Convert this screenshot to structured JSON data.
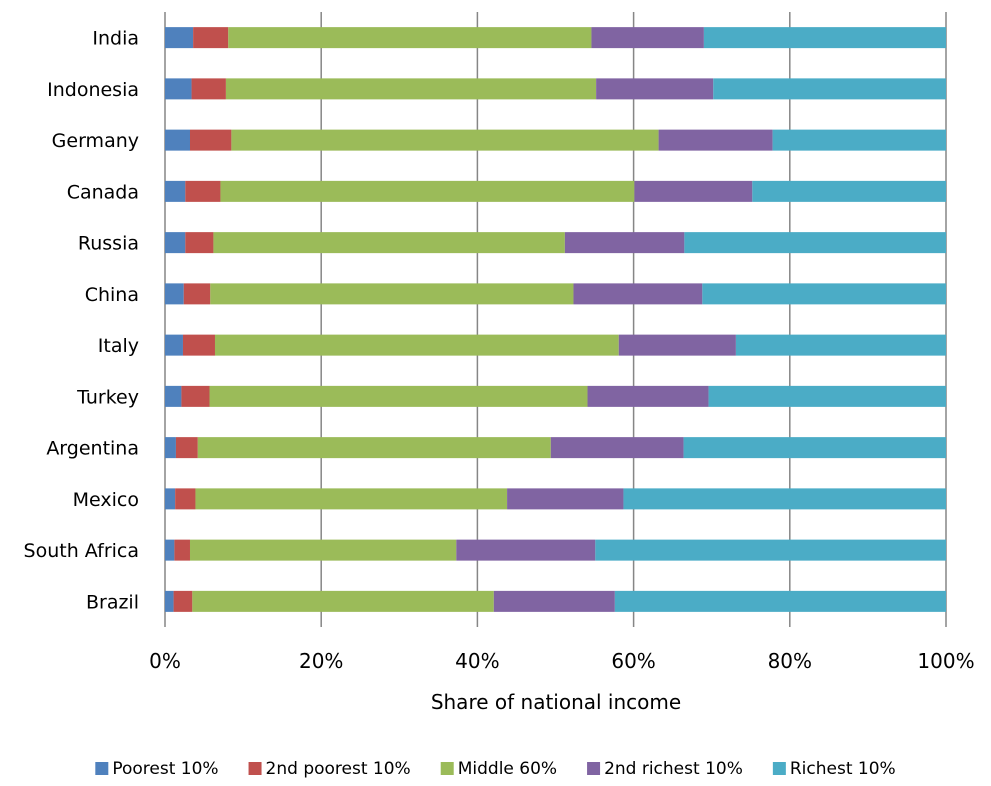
{
  "chart_data": {
    "type": "bar",
    "orientation": "horizontal",
    "stacked": "percent",
    "title": "",
    "xlabel": "Share of national income",
    "ylabel": "",
    "xlim": [
      0,
      100
    ],
    "x_ticks": [
      "0%",
      "20%",
      "40%",
      "60%",
      "80%",
      "100%"
    ],
    "grid": "vertical major gridlines",
    "legend_position": "bottom",
    "categories": [
      "India",
      "Indonesia",
      "Germany",
      "Canada",
      "Russia",
      "China",
      "Italy",
      "Turkey",
      "Argentina",
      "Mexico",
      "South Africa",
      "Brazil"
    ],
    "series": [
      {
        "name": "Poorest 10%",
        "color": "#4f81bd",
        "values": [
          3.6,
          3.4,
          3.2,
          2.6,
          2.6,
          2.4,
          2.3,
          2.1,
          1.4,
          1.3,
          1.2,
          1.1
        ]
      },
      {
        "name": "2nd poorest 10%",
        "color": "#c0504d",
        "values": [
          4.5,
          4.4,
          5.3,
          4.5,
          3.6,
          3.4,
          4.1,
          3.6,
          2.8,
          2.6,
          2.0,
          2.4
        ]
      },
      {
        "name": "Middle 60%",
        "color": "#9bbb59",
        "values": [
          46.5,
          47.4,
          54.7,
          53.0,
          45.0,
          46.5,
          51.7,
          48.4,
          45.2,
          39.9,
          34.1,
          38.6
        ]
      },
      {
        "name": "2nd richest 10%",
        "color": "#8064a2",
        "values": [
          14.4,
          15.0,
          14.6,
          15.1,
          15.3,
          16.5,
          15.0,
          15.5,
          17.0,
          14.9,
          17.8,
          15.5
        ]
      },
      {
        "name": "Richest 10%",
        "color": "#4bacc6",
        "values": [
          31.0,
          29.8,
          22.2,
          24.8,
          33.5,
          31.2,
          26.9,
          30.4,
          33.6,
          41.3,
          44.9,
          42.4
        ]
      }
    ]
  }
}
